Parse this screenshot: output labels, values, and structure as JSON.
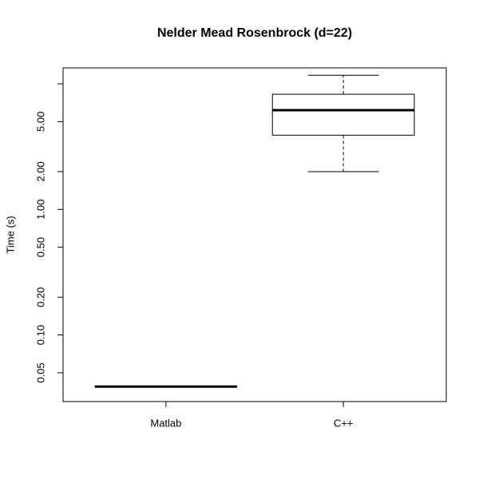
{
  "chart_data": {
    "type": "boxplot",
    "title": "Nelder Mead Rosenbrock (d=22)",
    "y_label": "Time (s)",
    "y_log": true,
    "categories": [
      "Matlab",
      "C++"
    ],
    "boxes": [
      {
        "min": 0.0385,
        "q1": 0.0387,
        "median": 0.0388,
        "q3": 0.039,
        "max": 0.039
      },
      {
        "min": 2.0,
        "q1": 3.9,
        "median": 6.17,
        "q3": 8.26,
        "max": 11.7
      }
    ],
    "color": "#000000",
    "ylim": [
      0.0295,
      13.4
    ],
    "yticks": [
      {
        "value": 0.05,
        "label": "0.05"
      },
      {
        "value": 0.1,
        "label": "0.10"
      },
      {
        "value": 0.2,
        "label": "0.20"
      },
      {
        "value": 0.5,
        "label": "0.50"
      },
      {
        "value": 1,
        "label": "1.00"
      },
      {
        "value": 2,
        "label": "2.00"
      },
      {
        "value": 5,
        "label": "5.00"
      },
      {
        "value": 10,
        "label": null
      }
    ]
  }
}
